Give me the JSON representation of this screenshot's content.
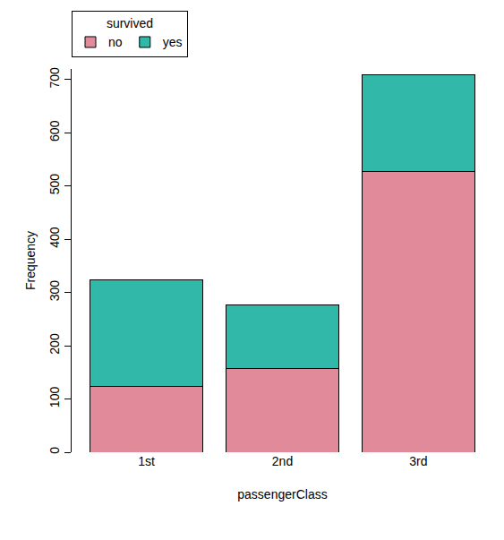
{
  "chart_data": {
    "type": "bar",
    "stacked": true,
    "x_label": "passengerClass",
    "y_label": "Frequency",
    "legend_title": "survived",
    "legend": "top left",
    "categories": [
      "1st",
      "2nd",
      "3rd"
    ],
    "series": [
      {
        "name": "no",
        "color": "#E18A99",
        "values": [
          123,
          158,
          528
        ]
      },
      {
        "name": "yes",
        "color": "#31B8A8",
        "values": [
          200,
          119,
          181
        ]
      }
    ],
    "ylim": [
      0,
      720
    ],
    "yticks": [
      0,
      100,
      200,
      300,
      400,
      500,
      600,
      700
    ],
    "grid": false
  }
}
